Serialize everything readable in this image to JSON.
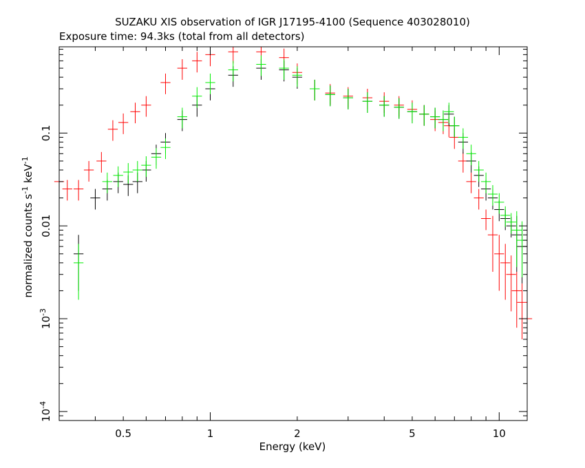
{
  "chart_data": {
    "type": "scatter",
    "title": "SUZAKU XIS observation of IGR J17195-4100 (Sequence 403028010)",
    "subtitle": "Exposure time: 94.3ks (total from all detectors)",
    "xlabel": "Energy (keV)",
    "ylabel": {
      "prefix": "normalized counts s",
      "sup1": "-1",
      "mid": " keV",
      "sup2": "-1"
    },
    "x_scale": "log",
    "y_scale": "log",
    "xlim": [
      0.3,
      12.5
    ],
    "ylim": [
      8e-05,
      0.85
    ],
    "x_ticks": [
      {
        "value": 0.5,
        "label": "0.5"
      },
      {
        "value": 1,
        "label": "1"
      },
      {
        "value": 2,
        "label": "2"
      },
      {
        "value": 5,
        "label": "5"
      },
      {
        "value": 10,
        "label": "10"
      }
    ],
    "y_ticks": [
      {
        "value": 0.1,
        "label": "0.1",
        "exp": ""
      },
      {
        "value": 0.01,
        "label": "0.01",
        "exp": ""
      },
      {
        "value": 0.001,
        "label": "10",
        "exp": "-3"
      },
      {
        "value": 0.0001,
        "label": "10",
        "exp": "-4"
      }
    ],
    "grid": false,
    "series": [
      {
        "color": "#ff0000",
        "x": [
          0.3,
          0.32,
          0.35,
          0.38,
          0.42,
          0.46,
          0.5,
          0.55,
          0.6,
          0.7,
          0.8,
          0.9,
          1.0,
          1.2,
          1.5,
          1.8,
          2.0,
          2.3,
          2.6,
          3.0,
          3.5,
          4.0,
          4.5,
          5.0,
          5.5,
          6.0,
          6.4,
          6.7,
          7.0,
          7.5,
          8.0,
          8.5,
          9.0,
          9.5,
          10.0,
          10.5,
          11.0,
          11.5,
          12.0,
          12.5
        ],
        "y": [
          0.03,
          0.025,
          0.025,
          0.04,
          0.05,
          0.11,
          0.13,
          0.17,
          0.2,
          0.35,
          0.5,
          0.6,
          0.7,
          0.75,
          0.75,
          0.65,
          0.45,
          0.3,
          0.27,
          0.25,
          0.24,
          0.22,
          0.2,
          0.18,
          0.16,
          0.14,
          0.13,
          0.12,
          0.09,
          0.05,
          0.03,
          0.02,
          0.012,
          0.008,
          0.005,
          0.004,
          0.003,
          0.002,
          0.0015,
          0.001
        ]
      },
      {
        "color": "#000000",
        "x": [
          0.35,
          0.4,
          0.44,
          0.48,
          0.52,
          0.56,
          0.6,
          0.65,
          0.7,
          0.8,
          0.9,
          1.0,
          1.2,
          1.5,
          1.8,
          2.0,
          2.3,
          2.6,
          3.0,
          3.5,
          4.0,
          4.5,
          5.0,
          5.5,
          6.0,
          6.4,
          6.7,
          7.0,
          7.5,
          8.0,
          8.5,
          9.0,
          9.5,
          10.0,
          10.5,
          11.0,
          11.5,
          12.0
        ],
        "y": [
          0.005,
          0.02,
          0.025,
          0.03,
          0.028,
          0.03,
          0.04,
          0.06,
          0.08,
          0.14,
          0.2,
          0.3,
          0.42,
          0.5,
          0.48,
          0.4,
          0.3,
          0.26,
          0.24,
          0.22,
          0.2,
          0.19,
          0.17,
          0.16,
          0.15,
          0.14,
          0.16,
          0.12,
          0.08,
          0.05,
          0.035,
          0.025,
          0.02,
          0.015,
          0.012,
          0.01,
          0.008,
          0.006
        ]
      },
      {
        "color": "#00ee00",
        "x": [
          0.35,
          0.44,
          0.48,
          0.52,
          0.56,
          0.6,
          0.65,
          0.7,
          0.8,
          0.9,
          1.0,
          1.2,
          1.5,
          1.8,
          2.0,
          2.3,
          2.6,
          3.0,
          3.5,
          4.0,
          4.5,
          5.0,
          5.5,
          6.0,
          6.4,
          6.7,
          7.0,
          7.5,
          8.0,
          8.5,
          9.0,
          9.5,
          10.0,
          10.5,
          11.0,
          11.5,
          12.0
        ],
        "y": [
          0.004,
          0.03,
          0.035,
          0.038,
          0.04,
          0.045,
          0.055,
          0.07,
          0.15,
          0.25,
          0.35,
          0.48,
          0.55,
          0.5,
          0.42,
          0.3,
          0.26,
          0.24,
          0.22,
          0.2,
          0.19,
          0.17,
          0.16,
          0.15,
          0.14,
          0.17,
          0.12,
          0.09,
          0.06,
          0.04,
          0.03,
          0.022,
          0.018,
          0.013,
          0.011,
          0.009,
          0.007
        ]
      }
    ]
  }
}
